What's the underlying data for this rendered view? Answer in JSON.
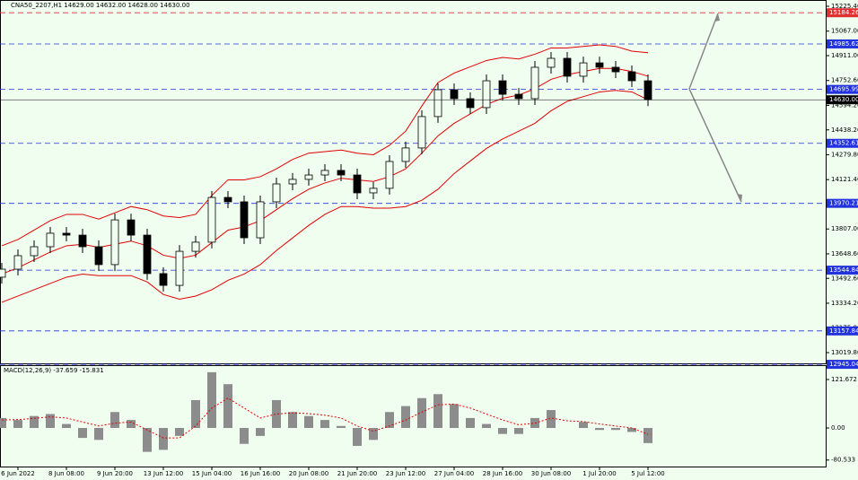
{
  "chart_data": [
    {
      "type": "candlestick",
      "title": "CNA50_2207,H1  14629.00 14632.00 14628.00 14630.00",
      "categories": [
        null,
        "6 Jun 2022",
        null,
        null,
        "8 Jun 08:00",
        null,
        null,
        "9 Jun 20:00",
        null,
        null,
        "13 Jun 12:00",
        null,
        null,
        "15 Jun 04:00",
        null,
        null,
        "16 Jun 16:00",
        null,
        null,
        "20 Jun 08:00",
        null,
        null,
        "21 Jun 20:00",
        null,
        null,
        "23 Jun 12:00",
        null,
        null,
        "27 Jun 04:00",
        null,
        null,
        "28 Jun 16:00",
        null,
        null,
        "30 Jun 08:00",
        null,
        null,
        "1 Jul 20:00",
        null,
        null,
        "5 Jul 12:00"
      ],
      "open": [
        13500,
        13551,
        13637,
        13694,
        13780,
        13768,
        13694,
        13580,
        13865,
        13768,
        13523,
        13448,
        13665,
        13723,
        14008,
        13980,
        13751,
        13980,
        14094,
        14123,
        14151,
        14180,
        14151,
        14037,
        14066,
        14237,
        14323,
        14523,
        14694,
        14637,
        14580,
        14751,
        14665,
        14637,
        14837,
        14894,
        14780,
        14865,
        14837,
        14808,
        14751
      ],
      "high": [
        13591,
        13677,
        13734,
        13820,
        13820,
        13808,
        13734,
        13905,
        13905,
        13808,
        13563,
        13705,
        13763,
        14048,
        14048,
        14020,
        14020,
        14134,
        14163,
        14191,
        14220,
        14220,
        14191,
        14106,
        14277,
        14363,
        14563,
        14734,
        14734,
        14677,
        14791,
        14791,
        14705,
        14877,
        14934,
        14934,
        14905,
        14905,
        14877,
        14848,
        14791
      ],
      "low": [
        13460,
        13511,
        13597,
        13654,
        13728,
        13654,
        13540,
        13540,
        13728,
        13483,
        13408,
        13408,
        13625,
        13683,
        13940,
        13711,
        13711,
        13940,
        14054,
        14083,
        14111,
        14111,
        13997,
        13997,
        14026,
        14197,
        14283,
        14483,
        14597,
        14540,
        14540,
        14625,
        14597,
        14597,
        14797,
        14740,
        14740,
        14797,
        14768,
        14711,
        14590
      ],
      "close": [
        13551,
        13637,
        13694,
        13780,
        13768,
        13694,
        13580,
        13865,
        13768,
        13523,
        13448,
        13665,
        13723,
        14008,
        13980,
        13751,
        13980,
        14094,
        14123,
        14151,
        14180,
        14151,
        14037,
        14066,
        14237,
        14323,
        14523,
        14694,
        14637,
        14580,
        14751,
        14665,
        14637,
        14837,
        14894,
        14780,
        14865,
        14837,
        14808,
        14751,
        14630
      ],
      "candle_color": "#000000",
      "overlays": [
        {
          "color": "#e00000",
          "values": [
            13700,
            13740,
            13800,
            13860,
            13900,
            13900,
            13870,
            13910,
            13950,
            13930,
            13890,
            13880,
            13900,
            14020,
            14120,
            14120,
            14140,
            14190,
            14250,
            14290,
            14300,
            14310,
            14290,
            14280,
            14340,
            14430,
            14590,
            14740,
            14800,
            14840,
            14880,
            14900,
            14890,
            14920,
            14960,
            14960,
            14970,
            14980,
            14970,
            14940,
            14930
          ]
        },
        {
          "color": "#e00000",
          "values": [
            13520,
            13560,
            13610,
            13660,
            13700,
            13710,
            13690,
            13710,
            13730,
            13700,
            13640,
            13620,
            13640,
            13720,
            13800,
            13820,
            13860,
            13930,
            14000,
            14060,
            14100,
            14130,
            14120,
            14110,
            14140,
            14190,
            14290,
            14400,
            14480,
            14540,
            14600,
            14640,
            14660,
            14700,
            14760,
            14790,
            14810,
            14830,
            14830,
            14810,
            14780
          ]
        },
        {
          "color": "#e00000",
          "values": [
            13340,
            13380,
            13420,
            13460,
            13500,
            13520,
            13510,
            13510,
            13510,
            13470,
            13390,
            13360,
            13380,
            13420,
            13480,
            13520,
            13580,
            13670,
            13750,
            13830,
            13900,
            13950,
            13950,
            13940,
            13940,
            13950,
            13990,
            14060,
            14160,
            14240,
            14320,
            14380,
            14430,
            14480,
            14560,
            14620,
            14650,
            14680,
            14690,
            14680,
            14630
          ]
        }
      ],
      "ylim": [
        12951.2,
        15265.4
      ],
      "yticks": [
        {
          "value": 15225.4,
          "label": "15225.40"
        },
        {
          "value": 15067,
          "label": "15067.00"
        },
        {
          "value": 14911,
          "label": "14911.00"
        },
        {
          "value": 14752.6,
          "label": "14752.60"
        },
        {
          "value": 14594.2,
          "label": "14594.20"
        },
        {
          "value": 14438.2,
          "label": "14438.20"
        },
        {
          "value": 14279.8,
          "label": "14279.80"
        },
        {
          "value": 14121.4,
          "label": "14121.40"
        },
        {
          "value": 13807,
          "label": "13807.00"
        },
        {
          "value": 13648.6,
          "label": "13648.60"
        },
        {
          "value": 13492.6,
          "label": "13492.60"
        },
        {
          "value": 13334.2,
          "label": "13334.20"
        },
        {
          "value": 13175.8,
          "label": "13175.80"
        },
        {
          "value": 13019.8,
          "label": "13019.80"
        }
      ],
      "levels": [
        {
          "value": 15184.26,
          "color": "#e03030"
        },
        {
          "value": 14985.62,
          "color": "#2233dd"
        },
        {
          "value": 14695.99,
          "color": "#2233dd"
        },
        {
          "value": 14352.61,
          "color": "#2233dd"
        },
        {
          "value": 13970.21,
          "color": "#2233dd"
        },
        {
          "value": 13544.84,
          "color": "#2233dd"
        },
        {
          "value": 13157.84,
          "color": "#2233dd"
        },
        {
          "value": 12945.04,
          "color": "#2233dd"
        }
      ],
      "last_price": {
        "value": 14630,
        "label": "14630.00"
      }
    },
    {
      "type": "macd",
      "title": "MACD(12,26,9) -37.659 -15.831",
      "values": [
        25,
        20,
        30,
        35,
        10,
        -25,
        -30,
        40,
        20,
        -60,
        -55,
        -20,
        70,
        140,
        110,
        -40,
        -20,
        70,
        40,
        30,
        20,
        5,
        -45,
        -30,
        40,
        55,
        75,
        85,
        60,
        25,
        10,
        -15,
        -15,
        25,
        45,
        0,
        15,
        -5,
        -5,
        -10,
        -38
      ],
      "color": "#8c8c8c",
      "signal": {
        "color": "#e00000",
        "values": [
          20,
          21,
          24,
          28,
          25,
          15,
          5,
          12,
          15,
          -5,
          -25,
          -25,
          5,
          50,
          75,
          50,
          25,
          35,
          38,
          36,
          32,
          25,
          5,
          -8,
          5,
          20,
          40,
          58,
          60,
          50,
          35,
          20,
          8,
          12,
          25,
          18,
          16,
          10,
          5,
          0,
          -16
        ]
      },
      "ylim": [
        -96.9,
        155.5
      ],
      "yticks": [
        121.672,
        {
          "value": 0,
          "label": "0.00"
        },
        -80.533
      ]
    }
  ]
}
